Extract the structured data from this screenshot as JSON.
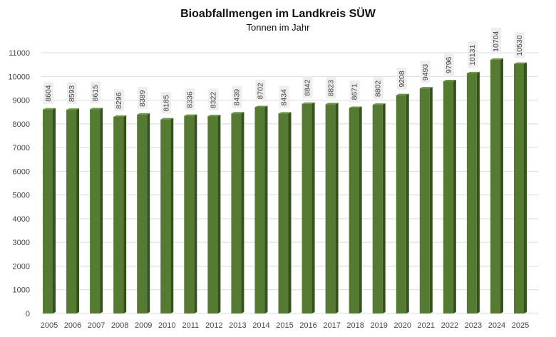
{
  "chart_data": {
    "type": "bar",
    "title": "Bioabfallmengen im Landkreis SÜW",
    "subtitle": "Tonnen im Jahr",
    "xlabel": "",
    "ylabel": "",
    "categories": [
      "2005",
      "2006",
      "2007",
      "2008",
      "2009",
      "2010",
      "2011",
      "2012",
      "2013",
      "2014",
      "2015",
      "2016",
      "2017",
      "2018",
      "2019",
      "2020",
      "2021",
      "2022",
      "2023",
      "2024",
      "2025"
    ],
    "values": [
      8604,
      8593,
      8615,
      8296,
      8389,
      8185,
      8336,
      8322,
      8439,
      8702,
      8434,
      8842,
      8823,
      8671,
      8802,
      9208,
      9493,
      9796,
      10131,
      10704,
      10530
    ],
    "ylim": [
      0,
      11000
    ],
    "yticks": [
      0,
      1000,
      2000,
      3000,
      4000,
      5000,
      6000,
      7000,
      8000,
      9000,
      10000,
      11000
    ],
    "grid": true,
    "legend": "none",
    "data_labels": "rotated, above bars",
    "colors": {
      "bar_front": "#557a32",
      "bar_side": "#34501c",
      "bar_top": "#6b9443",
      "label_bg": "#eeeeee",
      "grid": "#d9d9d9"
    }
  }
}
